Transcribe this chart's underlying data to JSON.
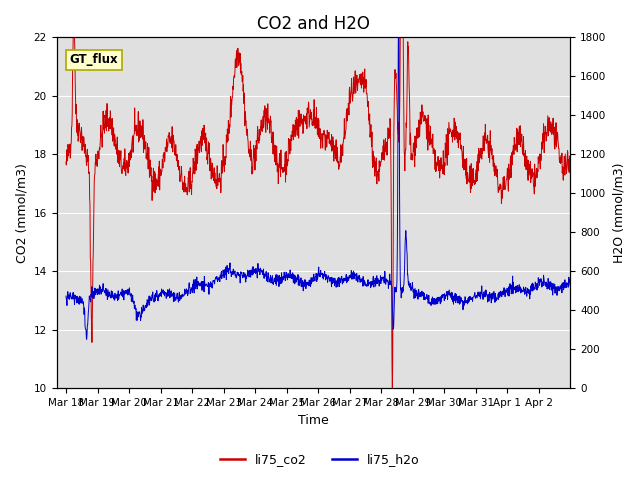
{
  "title": "CO2 and H2O",
  "xlabel": "Time",
  "ylabel_left": "CO2 (mmol/m3)",
  "ylabel_right": "H2O (mmol/m3)",
  "annotation": "GT_flux",
  "legend": [
    "li75_co2",
    "li75_h2o"
  ],
  "legend_colors": [
    "#cc0000",
    "#0000cc"
  ],
  "ylim_left": [
    10,
    22
  ],
  "ylim_right": [
    0,
    1800
  ],
  "background_color": "#e0e0e0",
  "co2_color": "#cc0000",
  "h2o_color": "#0000cc",
  "x_tick_labels": [
    "Mar 18",
    "Mar 19",
    "Mar 20",
    "Mar 21",
    "Mar 22",
    "Mar 23",
    "Mar 24",
    "Mar 25",
    "Mar 26",
    "Mar 27",
    "Mar 28",
    "Mar 29",
    "Mar 30",
    "Mar 31",
    "Apr 1",
    "Apr 2"
  ],
  "title_fontsize": 12,
  "axis_fontsize": 9,
  "tick_fontsize": 7.5
}
